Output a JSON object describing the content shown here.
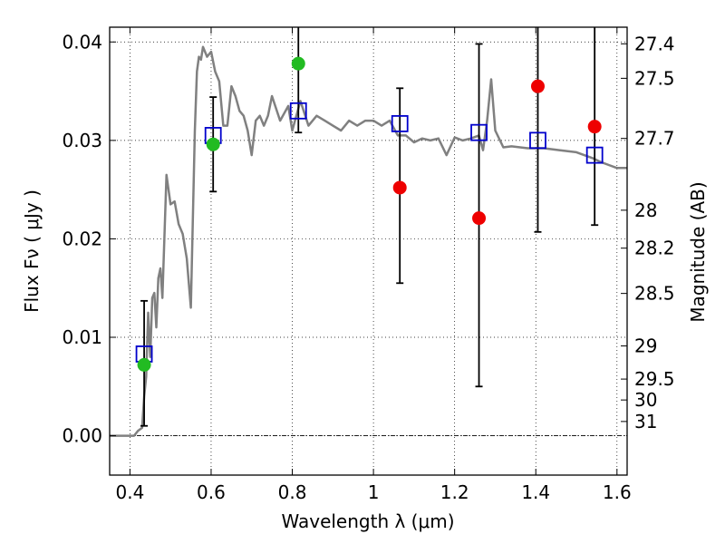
{
  "chart_data": {
    "type": "scatter",
    "xlabel": "Wavelength  λ (μm)",
    "ylabel": "Flux  Fν  ( μJy )",
    "y2label": "Magnitude (AB)",
    "xlim": [
      0.35,
      1.625
    ],
    "ylim": [
      -0.004,
      0.0415
    ],
    "grid": true,
    "colors": {
      "model": "#808080",
      "blue": "#0000cc",
      "green": "#22bb22",
      "red": "#ee0000",
      "errorbar": "#000000"
    },
    "xticks": [
      0.4,
      0.6,
      0.8,
      1.0,
      1.2,
      1.4,
      1.6
    ],
    "xtick_labels": [
      "0.4",
      "0.6",
      "0.8",
      "1",
      "1.2",
      "1.4",
      "1.6"
    ],
    "yticks": [
      0.0,
      0.01,
      0.02,
      0.03,
      0.04
    ],
    "ytick_labels": [
      "0.00",
      "0.01",
      "0.02",
      "0.03",
      "0.04"
    ],
    "mag_ticks": [
      27.4,
      27.5,
      27.7,
      28,
      28.2,
      28.5,
      29,
      29.5,
      30,
      31
    ],
    "mag_tick_labels": [
      "27.4",
      "27.5",
      "27.7",
      "28",
      "28.2",
      "28.5",
      "29",
      "29.5",
      "30",
      "31"
    ],
    "model_spectrum": {
      "x": [
        0.35,
        0.41,
        0.42,
        0.43,
        0.435,
        0.44,
        0.445,
        0.45,
        0.455,
        0.46,
        0.465,
        0.47,
        0.475,
        0.48,
        0.49,
        0.5,
        0.51,
        0.52,
        0.53,
        0.54,
        0.55,
        0.56,
        0.565,
        0.57,
        0.575,
        0.58,
        0.59,
        0.6,
        0.61,
        0.62,
        0.63,
        0.64,
        0.65,
        0.66,
        0.67,
        0.68,
        0.69,
        0.7,
        0.71,
        0.72,
        0.73,
        0.74,
        0.75,
        0.77,
        0.79,
        0.8,
        0.82,
        0.84,
        0.86,
        0.88,
        0.9,
        0.92,
        0.94,
        0.96,
        0.98,
        1.0,
        1.02,
        1.04,
        1.06,
        1.08,
        1.1,
        1.12,
        1.14,
        1.16,
        1.18,
        1.2,
        1.22,
        1.24,
        1.26,
        1.27,
        1.28,
        1.29,
        1.3,
        1.32,
        1.34,
        1.38,
        1.42,
        1.46,
        1.5,
        1.54,
        1.56,
        1.58,
        1.6,
        1.625
      ],
      "y": [
        0.0,
        0.0,
        0.0005,
        0.0008,
        0.004,
        0.006,
        0.0125,
        0.008,
        0.014,
        0.0145,
        0.011,
        0.016,
        0.017,
        0.014,
        0.0265,
        0.0235,
        0.0238,
        0.0215,
        0.0205,
        0.018,
        0.013,
        0.031,
        0.037,
        0.0385,
        0.0382,
        0.0395,
        0.0385,
        0.039,
        0.037,
        0.036,
        0.0315,
        0.0315,
        0.0355,
        0.0345,
        0.033,
        0.0325,
        0.031,
        0.0285,
        0.032,
        0.0325,
        0.0315,
        0.0325,
        0.0345,
        0.032,
        0.0335,
        0.031,
        0.034,
        0.0315,
        0.0325,
        0.032,
        0.0315,
        0.031,
        0.032,
        0.0315,
        0.032,
        0.032,
        0.0315,
        0.032,
        0.0305,
        0.0305,
        0.0298,
        0.0302,
        0.03,
        0.0302,
        0.0285,
        0.0303,
        0.03,
        0.0302,
        0.0305,
        0.029,
        0.032,
        0.0362,
        0.031,
        0.0293,
        0.0294,
        0.0292,
        0.0292,
        0.029,
        0.0288,
        0.0282,
        0.0278,
        0.0275,
        0.0272,
        0.0272
      ]
    },
    "series": [
      {
        "marker": "open-square",
        "x": [
          0.435,
          0.605,
          0.815,
          1.065,
          1.26,
          1.405,
          1.545
        ],
        "y": [
          0.0083,
          0.0305,
          0.033,
          0.0317,
          0.0308,
          0.03,
          0.0285
        ],
        "yerr_low": [
          0.001,
          0.0248,
          0.0308,
          0.0155,
          0.005,
          0.0207,
          0.0214
        ],
        "yerr_high": [
          0.0137,
          0.0344,
          0.045,
          0.0353,
          0.0398,
          0.045,
          0.045
        ]
      },
      {
        "marker": "filled-circle",
        "x": [
          0.435,
          0.605,
          0.815
        ],
        "y": [
          0.0072,
          0.0296,
          0.0378
        ]
      },
      {
        "marker": "filled-circle",
        "x": [
          1.065,
          1.26,
          1.405,
          1.545
        ],
        "y": [
          0.0252,
          0.0221,
          0.0355,
          0.0314
        ]
      }
    ]
  }
}
